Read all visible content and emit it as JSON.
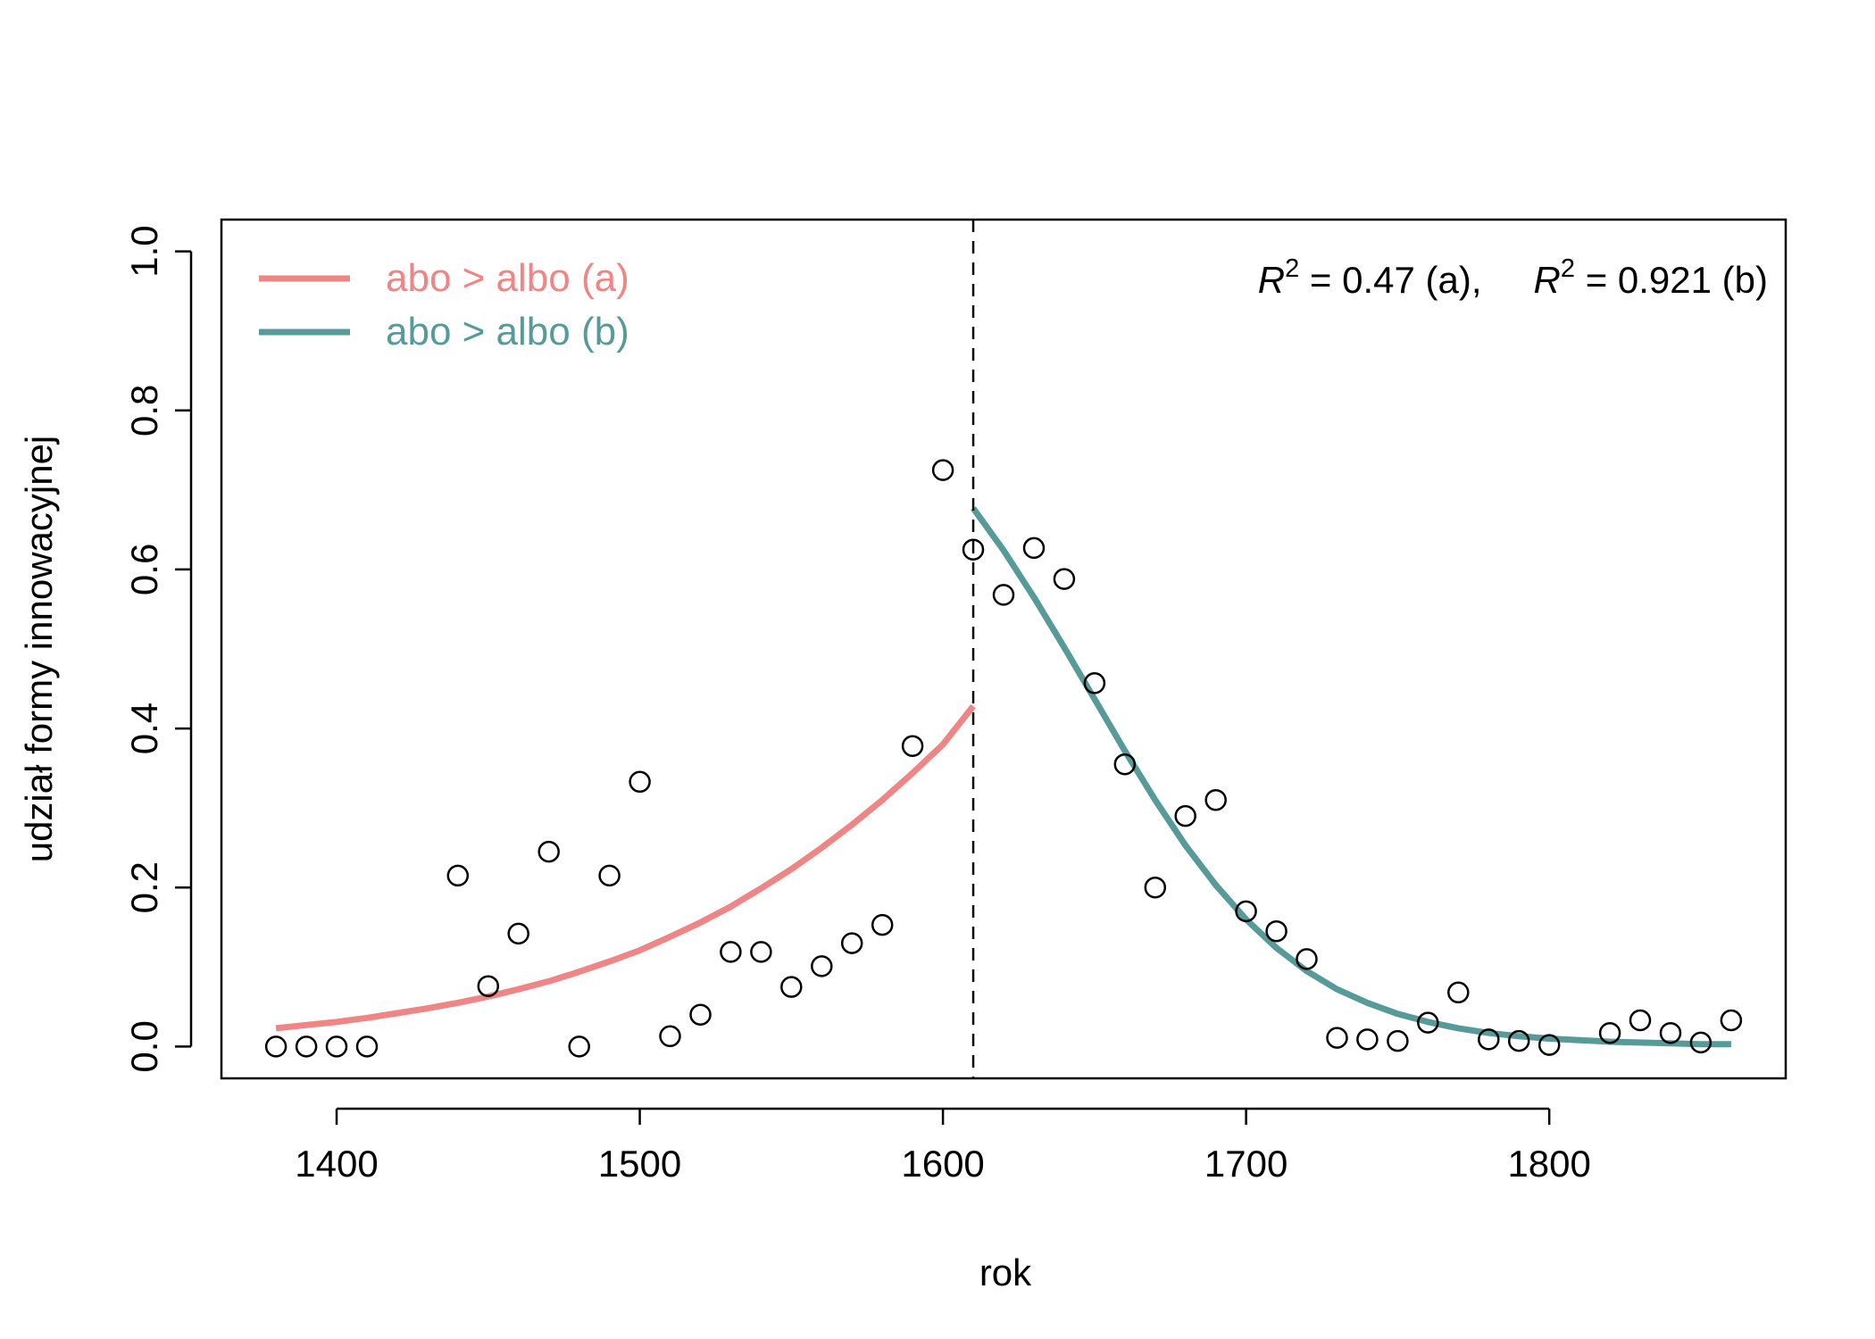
{
  "chart_data": {
    "type": "scatter",
    "xlabel": "rok",
    "ylabel": "udział formy innowacyjnej",
    "xlim": [
      1362,
      1878
    ],
    "ylim": [
      -0.04,
      1.04
    ],
    "xticks": [
      1400,
      1500,
      1600,
      1700,
      1800
    ],
    "xtick_labels": [
      "1400",
      "1500",
      "1600",
      "1700",
      "1800"
    ],
    "yticks": [
      0.0,
      0.2,
      0.4,
      0.6,
      0.8,
      1.0
    ],
    "ytick_labels": [
      "0.0",
      "0.2",
      "0.4",
      "0.6",
      "0.8",
      "1.0"
    ],
    "grid": false,
    "breakpoint": 1610,
    "points": {
      "x": [
        1380,
        1390,
        1400,
        1410,
        1440,
        1450,
        1460,
        1470,
        1480,
        1490,
        1500,
        1510,
        1520,
        1530,
        1540,
        1550,
        1560,
        1570,
        1580,
        1590,
        1600,
        1610,
        1620,
        1630,
        1640,
        1650,
        1660,
        1670,
        1680,
        1690,
        1700,
        1710,
        1720,
        1730,
        1740,
        1750,
        1760,
        1770,
        1780,
        1790,
        1800,
        1820,
        1830,
        1840,
        1850,
        1860
      ],
      "y": [
        0.0,
        0.0,
        0.0,
        0.0,
        0.215,
        0.076,
        0.142,
        0.245,
        0.0,
        0.215,
        0.333,
        0.013,
        0.04,
        0.119,
        0.119,
        0.075,
        0.101,
        0.13,
        0.153,
        0.378,
        0.725,
        0.625,
        0.568,
        0.627,
        0.588,
        0.457,
        0.355,
        0.2,
        0.29,
        0.31,
        0.17,
        0.145,
        0.11,
        0.011,
        0.009,
        0.007,
        0.03,
        0.068,
        0.009,
        0.007,
        0.002,
        0.017,
        0.033,
        0.017,
        0.005,
        0.033
      ]
    },
    "series": [
      {
        "name": "abo > albo (a)",
        "color": "#ef8585",
        "x": [
          1380,
          1390,
          1400,
          1410,
          1420,
          1430,
          1440,
          1450,
          1460,
          1470,
          1480,
          1490,
          1500,
          1510,
          1520,
          1530,
          1540,
          1550,
          1560,
          1570,
          1580,
          1590,
          1600,
          1610
        ],
        "y": [
          0.023,
          0.027,
          0.031,
          0.036,
          0.042,
          0.048,
          0.055,
          0.063,
          0.072,
          0.082,
          0.094,
          0.107,
          0.121,
          0.138,
          0.156,
          0.176,
          0.199,
          0.223,
          0.25,
          0.279,
          0.31,
          0.344,
          0.38,
          0.428
        ]
      },
      {
        "name": "abo > albo (b)",
        "color": "#579a9a",
        "x": [
          1610,
          1620,
          1630,
          1640,
          1650,
          1660,
          1670,
          1680,
          1690,
          1700,
          1710,
          1720,
          1730,
          1740,
          1750,
          1760,
          1770,
          1780,
          1790,
          1800,
          1810,
          1820,
          1830,
          1840,
          1850,
          1860
        ],
        "y": [
          0.677,
          0.624,
          0.565,
          0.502,
          0.437,
          0.372,
          0.31,
          0.253,
          0.203,
          0.16,
          0.124,
          0.095,
          0.072,
          0.055,
          0.041,
          0.031,
          0.023,
          0.017,
          0.013,
          0.01,
          0.008,
          0.006,
          0.005,
          0.004,
          0.003,
          0.003
        ]
      }
    ],
    "legend": {
      "position": "top-left",
      "entries": [
        {
          "label": "abo > albo (a)",
          "color": "#ef8585"
        },
        {
          "label": "abo > albo (b)",
          "color": "#579a9a"
        }
      ]
    },
    "annotation": {
      "position": "top-right",
      "r_symbol": "R",
      "r_exponent": "2",
      "a_text": " = 0.47 (a),",
      "b_text": " = 0.921 (b)"
    }
  }
}
